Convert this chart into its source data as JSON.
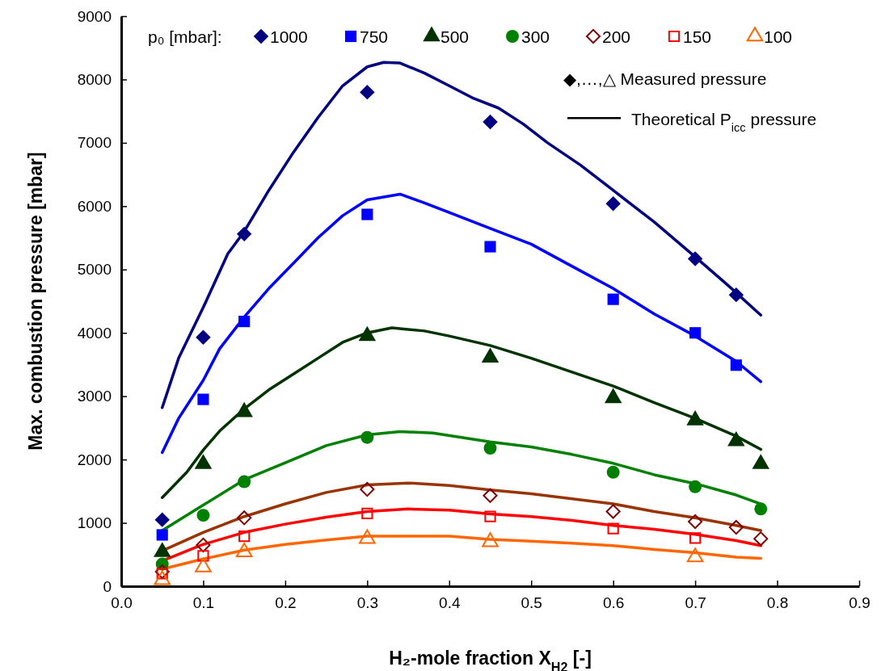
{
  "chart_data": {
    "type": "scatter",
    "xlabel": "H₂-mole fraction X$_{H2}$ [-]",
    "ylabel": "Max. combustion pressure [mbar]",
    "legend_title": "p₀ [mbar]:",
    "legend": "top",
    "grid": false,
    "xlim": [
      0,
      0.9
    ],
    "xticks": [
      {
        "value": 0,
        "label": "0.0"
      },
      0.1,
      0.2,
      0.3,
      0.4,
      0.5,
      0.6,
      0.7,
      0.8,
      0.9
    ],
    "ylim": [
      0,
      9000
    ],
    "yticks": [
      0,
      1000,
      2000,
      3000,
      4000,
      5000,
      6000,
      7000,
      8000,
      9000
    ],
    "annotations": [
      "◆,…,△ Measured pressure",
      "Theoretical P$_{icc}$ pressure"
    ],
    "series": [
      {
        "type": "line",
        "color": "#000080",
        "x": [
          0.05,
          0.07,
          0.1,
          0.13,
          0.15,
          0.18,
          0.21,
          0.24,
          0.27,
          0.3,
          0.32,
          0.34,
          0.37,
          0.4,
          0.43,
          0.46,
          0.49,
          0.52,
          0.56,
          0.6,
          0.65,
          0.7,
          0.74,
          0.78
        ],
        "values": [
          2820,
          3600,
          4400,
          5250,
          5600,
          6250,
          6850,
          7400,
          7900,
          8200,
          8270,
          8260,
          8100,
          7900,
          7700,
          7550,
          7300,
          7000,
          6650,
          6250,
          5750,
          5200,
          4750,
          4280
        ]
      },
      {
        "type": "line",
        "color": "#0000ff",
        "x": [
          0.05,
          0.07,
          0.1,
          0.12,
          0.15,
          0.18,
          0.21,
          0.24,
          0.27,
          0.3,
          0.34,
          0.37,
          0.4,
          0.45,
          0.5,
          0.55,
          0.6,
          0.65,
          0.7,
          0.75,
          0.78
        ],
        "values": [
          2110,
          2650,
          3250,
          3750,
          4250,
          4700,
          5100,
          5500,
          5850,
          6100,
          6190,
          6050,
          5900,
          5650,
          5400,
          5050,
          4700,
          4300,
          3950,
          3550,
          3230
        ]
      },
      {
        "type": "line",
        "color": "#003300",
        "x": [
          0.05,
          0.08,
          0.1,
          0.12,
          0.15,
          0.18,
          0.21,
          0.24,
          0.27,
          0.3,
          0.33,
          0.37,
          0.4,
          0.45,
          0.5,
          0.55,
          0.6,
          0.65,
          0.7,
          0.75,
          0.78
        ],
        "values": [
          1400,
          1800,
          2150,
          2450,
          2800,
          3100,
          3350,
          3600,
          3850,
          4000,
          4080,
          4030,
          3950,
          3800,
          3600,
          3380,
          3160,
          2900,
          2650,
          2370,
          2160
        ]
      },
      {
        "type": "line",
        "color": "#008000",
        "x": [
          0.05,
          0.1,
          0.15,
          0.2,
          0.25,
          0.3,
          0.34,
          0.38,
          0.45,
          0.5,
          0.55,
          0.6,
          0.65,
          0.7,
          0.75,
          0.78
        ],
        "values": [
          880,
          1280,
          1680,
          1950,
          2220,
          2390,
          2440,
          2420,
          2280,
          2200,
          2080,
          1940,
          1760,
          1620,
          1440,
          1300
        ]
      },
      {
        "type": "line",
        "color": "#993300",
        "x": [
          0.05,
          0.1,
          0.15,
          0.2,
          0.25,
          0.3,
          0.35,
          0.4,
          0.45,
          0.5,
          0.55,
          0.6,
          0.65,
          0.7,
          0.75,
          0.78
        ],
        "values": [
          560,
          850,
          1100,
          1300,
          1480,
          1600,
          1630,
          1590,
          1520,
          1460,
          1380,
          1300,
          1180,
          1080,
          960,
          880
        ]
      },
      {
        "type": "line",
        "color": "#ff0000",
        "x": [
          0.05,
          0.1,
          0.15,
          0.2,
          0.25,
          0.3,
          0.35,
          0.4,
          0.45,
          0.5,
          0.55,
          0.6,
          0.65,
          0.7,
          0.75,
          0.78
        ],
        "values": [
          400,
          660,
          850,
          980,
          1090,
          1180,
          1220,
          1200,
          1140,
          1100,
          1040,
          960,
          900,
          820,
          720,
          640
        ]
      },
      {
        "type": "line",
        "color": "#ff6600",
        "x": [
          0.05,
          0.1,
          0.15,
          0.2,
          0.25,
          0.3,
          0.35,
          0.4,
          0.45,
          0.5,
          0.55,
          0.6,
          0.65,
          0.7,
          0.75,
          0.78
        ],
        "values": [
          270,
          430,
          570,
          660,
          730,
          790,
          790,
          790,
          740,
          710,
          680,
          640,
          580,
          530,
          460,
          440
        ]
      },
      {
        "name": "1000",
        "marker": "diamond",
        "color": "#000080",
        "x": [
          0.05,
          0.1,
          0.15,
          0.3,
          0.45,
          0.6,
          0.7,
          0.75
        ],
        "values": [
          1050,
          3930,
          5560,
          7800,
          7330,
          6040,
          5170,
          4600
        ]
      },
      {
        "name": "750",
        "marker": "square",
        "color": "#0000ff",
        "x": [
          0.05,
          0.1,
          0.15,
          0.3,
          0.45,
          0.6,
          0.7,
          0.75
        ],
        "values": [
          810,
          2950,
          4180,
          5870,
          5360,
          4530,
          4000,
          3490
        ]
      },
      {
        "name": "500",
        "marker": "triangle",
        "color": "#003300",
        "x": [
          0.05,
          0.1,
          0.15,
          0.3,
          0.45,
          0.6,
          0.7,
          0.75,
          0.78
        ],
        "values": [
          540,
          1930,
          2750,
          3950,
          3610,
          2970,
          2620,
          2290,
          1930
        ]
      },
      {
        "name": "300",
        "marker": "circle",
        "color": "#008000",
        "x": [
          0.05,
          0.1,
          0.15,
          0.3,
          0.45,
          0.6,
          0.7,
          0.78
        ],
        "values": [
          350,
          1120,
          1650,
          2350,
          2180,
          1800,
          1570,
          1220
        ]
      },
      {
        "name": "200",
        "marker": "diamond-open",
        "color": "#800000",
        "x": [
          0.05,
          0.1,
          0.15,
          0.3,
          0.45,
          0.6,
          0.7,
          0.75,
          0.78
        ],
        "values": [
          230,
          650,
          1080,
          1530,
          1430,
          1180,
          1020,
          930,
          750
        ]
      },
      {
        "name": "150",
        "marker": "square-open",
        "color": "#ff0000",
        "x": [
          0.05,
          0.1,
          0.15,
          0.3,
          0.45,
          0.6,
          0.7
        ],
        "values": [
          200,
          480,
          790,
          1150,
          1100,
          910,
          760
        ]
      },
      {
        "name": "100",
        "marker": "triangle-open",
        "color": "#ff6600",
        "x": [
          0.05,
          0.1,
          0.15,
          0.3,
          0.45,
          0.7
        ],
        "values": [
          100,
          300,
          540,
          750,
          700,
          460
        ]
      }
    ]
  }
}
